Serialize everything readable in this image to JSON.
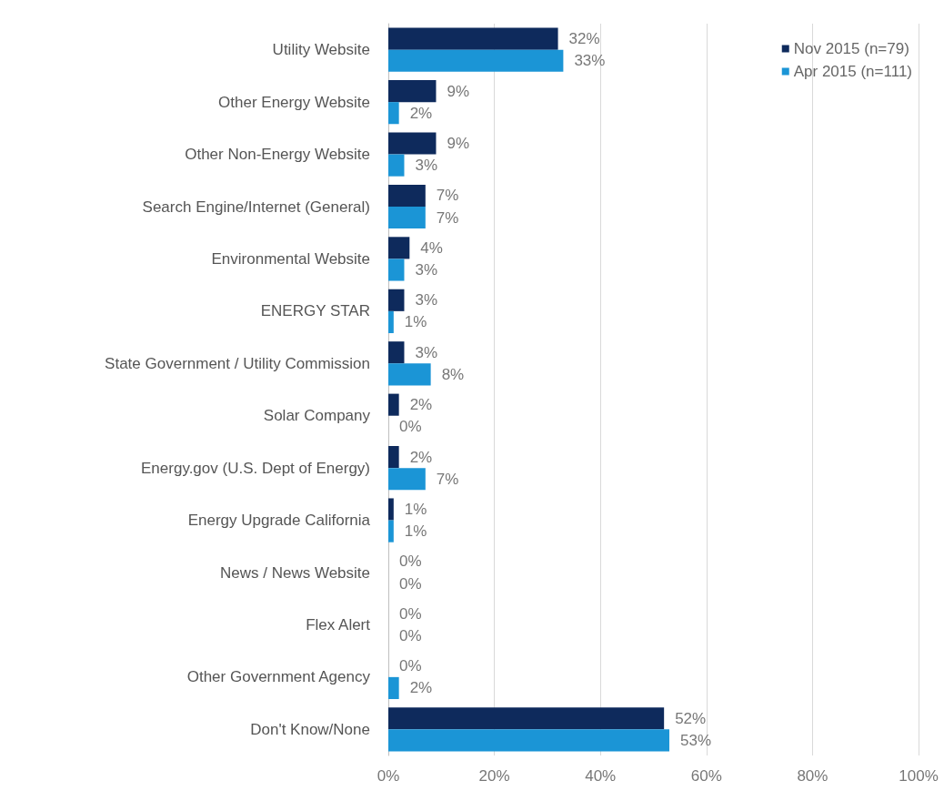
{
  "chart_data": {
    "type": "bar",
    "orientation": "horizontal",
    "categories": [
      "Utility Website",
      "Other Energy Website",
      "Other Non-Energy Website",
      "Search Engine/Internet (General)",
      "Environmental Website",
      "ENERGY STAR",
      "State Government / Utility Commission",
      "Solar Company",
      "Energy.gov (U.S. Dept of Energy)",
      "Energy Upgrade California",
      "News / News Website",
      "Flex Alert",
      "Other Government Agency",
      "Don't Know/None"
    ],
    "series": [
      {
        "name": "Nov 2015 (n=79)",
        "color": "#0e2a5c",
        "values": [
          32,
          9,
          9,
          7,
          4,
          3,
          3,
          2,
          2,
          1,
          0,
          0,
          0,
          52
        ],
        "value_labels": [
          "32%",
          "9%",
          "9%",
          "7%",
          "4%",
          "3%",
          "3%",
          "2%",
          "2%",
          "1%",
          "0%",
          "0%",
          "0%",
          "52%"
        ]
      },
      {
        "name": "Apr 2015 (n=111)",
        "color": "#1b95d6",
        "values": [
          33,
          2,
          3,
          7,
          3,
          1,
          8,
          0,
          7,
          1,
          0,
          0,
          2,
          53
        ],
        "value_labels": [
          "33%",
          "2%",
          "3%",
          "7%",
          "3%",
          "1%",
          "8%",
          "0%",
          "7%",
          "1%",
          "0%",
          "0%",
          "2%",
          "53%"
        ]
      }
    ],
    "xlim": [
      0,
      100
    ],
    "xticks": [
      {
        "value": 0,
        "label": "0%"
      },
      {
        "value": 20,
        "label": "20%"
      },
      {
        "value": 40,
        "label": "40%"
      },
      {
        "value": 60,
        "label": "60%"
      },
      {
        "value": 80,
        "label": "80%"
      },
      {
        "value": 100,
        "label": "100%"
      }
    ],
    "grid": "x",
    "legend": "top right"
  }
}
